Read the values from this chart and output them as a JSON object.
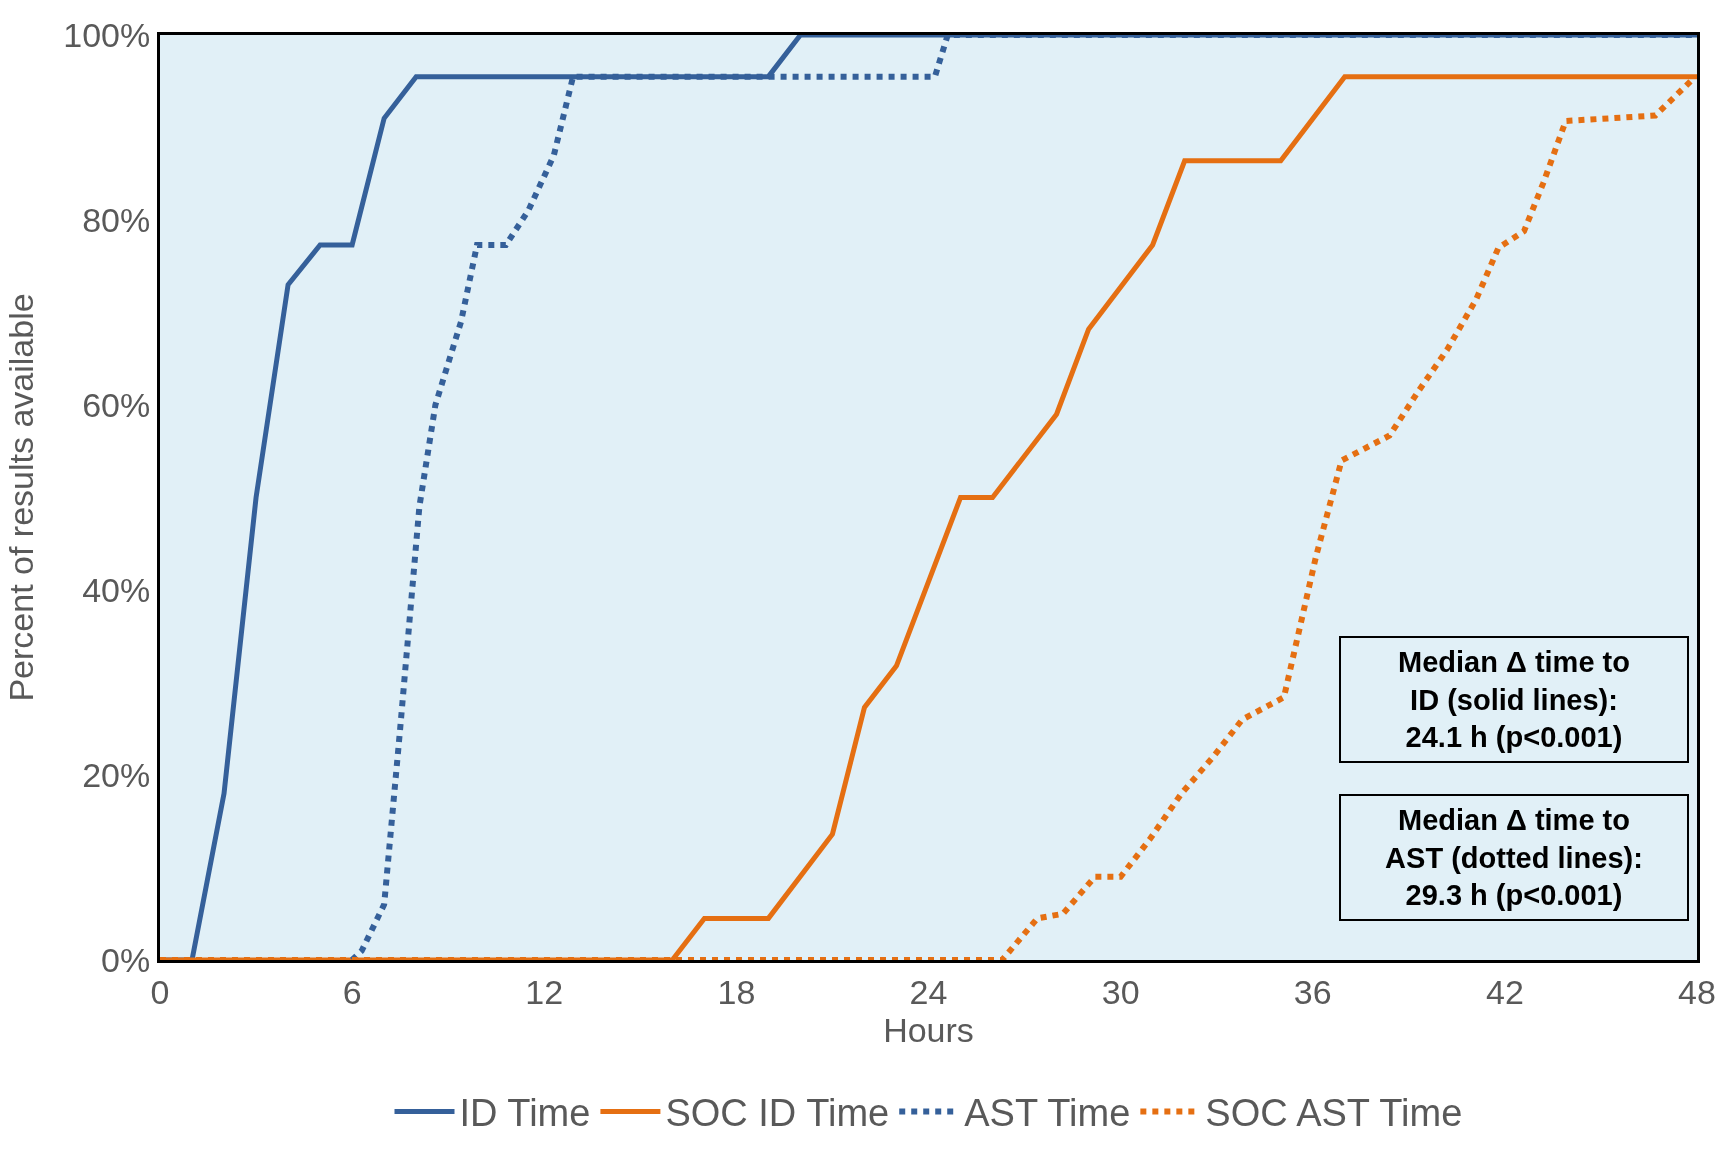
{
  "chart_data": {
    "type": "line",
    "xlabel": "Hours",
    "ylabel": "Percent of results available",
    "xlim": [
      0,
      48
    ],
    "xticks": [
      0,
      6,
      12,
      18,
      24,
      30,
      36,
      42,
      48
    ],
    "ylim": [
      0,
      100
    ],
    "yticks": [
      {
        "value": 0,
        "label": "0%"
      },
      {
        "value": 20,
        "label": "20%"
      },
      {
        "value": 40,
        "label": "40%"
      },
      {
        "value": 60,
        "label": "60%"
      },
      {
        "value": 80,
        "label": "80%"
      },
      {
        "value": 100,
        "label": "100%"
      }
    ],
    "grid": false,
    "legend": "bottom",
    "marker": "none",
    "series": [
      {
        "name": "ID Time",
        "color": "#35609a",
        "line_style": "solid",
        "x": [
          0,
          1,
          2,
          3,
          4,
          5,
          6,
          7,
          8,
          19,
          20,
          48
        ],
        "values": [
          0,
          0,
          18,
          50,
          73,
          77.3,
          77.3,
          91,
          95.5,
          95.5,
          100,
          100
        ]
      },
      {
        "name": "SOC ID Time",
        "color": "#e56f12",
        "line_style": "solid",
        "x": [
          0,
          16,
          17,
          19,
          21,
          22,
          23,
          25,
          26,
          28,
          29,
          31,
          32,
          35,
          37,
          48
        ],
        "values": [
          0,
          0,
          4.5,
          4.5,
          13.6,
          27.3,
          31.8,
          50,
          50,
          59,
          68.2,
          77.3,
          86.4,
          86.4,
          95.5,
          95.5
        ]
      },
      {
        "name": "AST Time",
        "color": "#35609a",
        "line_style": "dotted",
        "x": [
          0,
          6,
          6.3,
          7,
          7.5,
          8.1,
          8.6,
          9.4,
          9.9,
          10.8,
          11.5,
          12.3,
          12.9,
          24.2,
          24.6,
          48
        ],
        "values": [
          0,
          0,
          1,
          6,
          25,
          49,
          60,
          69,
          77.3,
          77.3,
          81,
          87,
          95.5,
          95.5,
          100,
          100
        ]
      },
      {
        "name": "SOC AST Time",
        "color": "#e56f12",
        "line_style": "dotted",
        "x": [
          0,
          26,
          26.3,
          27.4,
          28.2,
          29.2,
          30,
          30.9,
          31.9,
          32.9,
          33.8,
          35.1,
          35.6,
          36.1,
          36.9,
          38.4,
          39.3,
          40.2,
          41.1,
          41.8,
          42.6,
          43.2,
          43.9,
          46.7,
          47.8
        ],
        "values": [
          0,
          0,
          0,
          4.5,
          5,
          9,
          9,
          13,
          18,
          22,
          26,
          28.4,
          36,
          43.6,
          54,
          56.7,
          61.5,
          66,
          71.4,
          77,
          78.8,
          84,
          90.7,
          91.3,
          95
        ]
      }
    ],
    "annotations": [
      "Median Δ time to\nID (solid lines):\n24.1 h (p<0.001)",
      "Median Δ time to\nAST (dotted lines):\n29.3 h (p<0.001)"
    ]
  }
}
